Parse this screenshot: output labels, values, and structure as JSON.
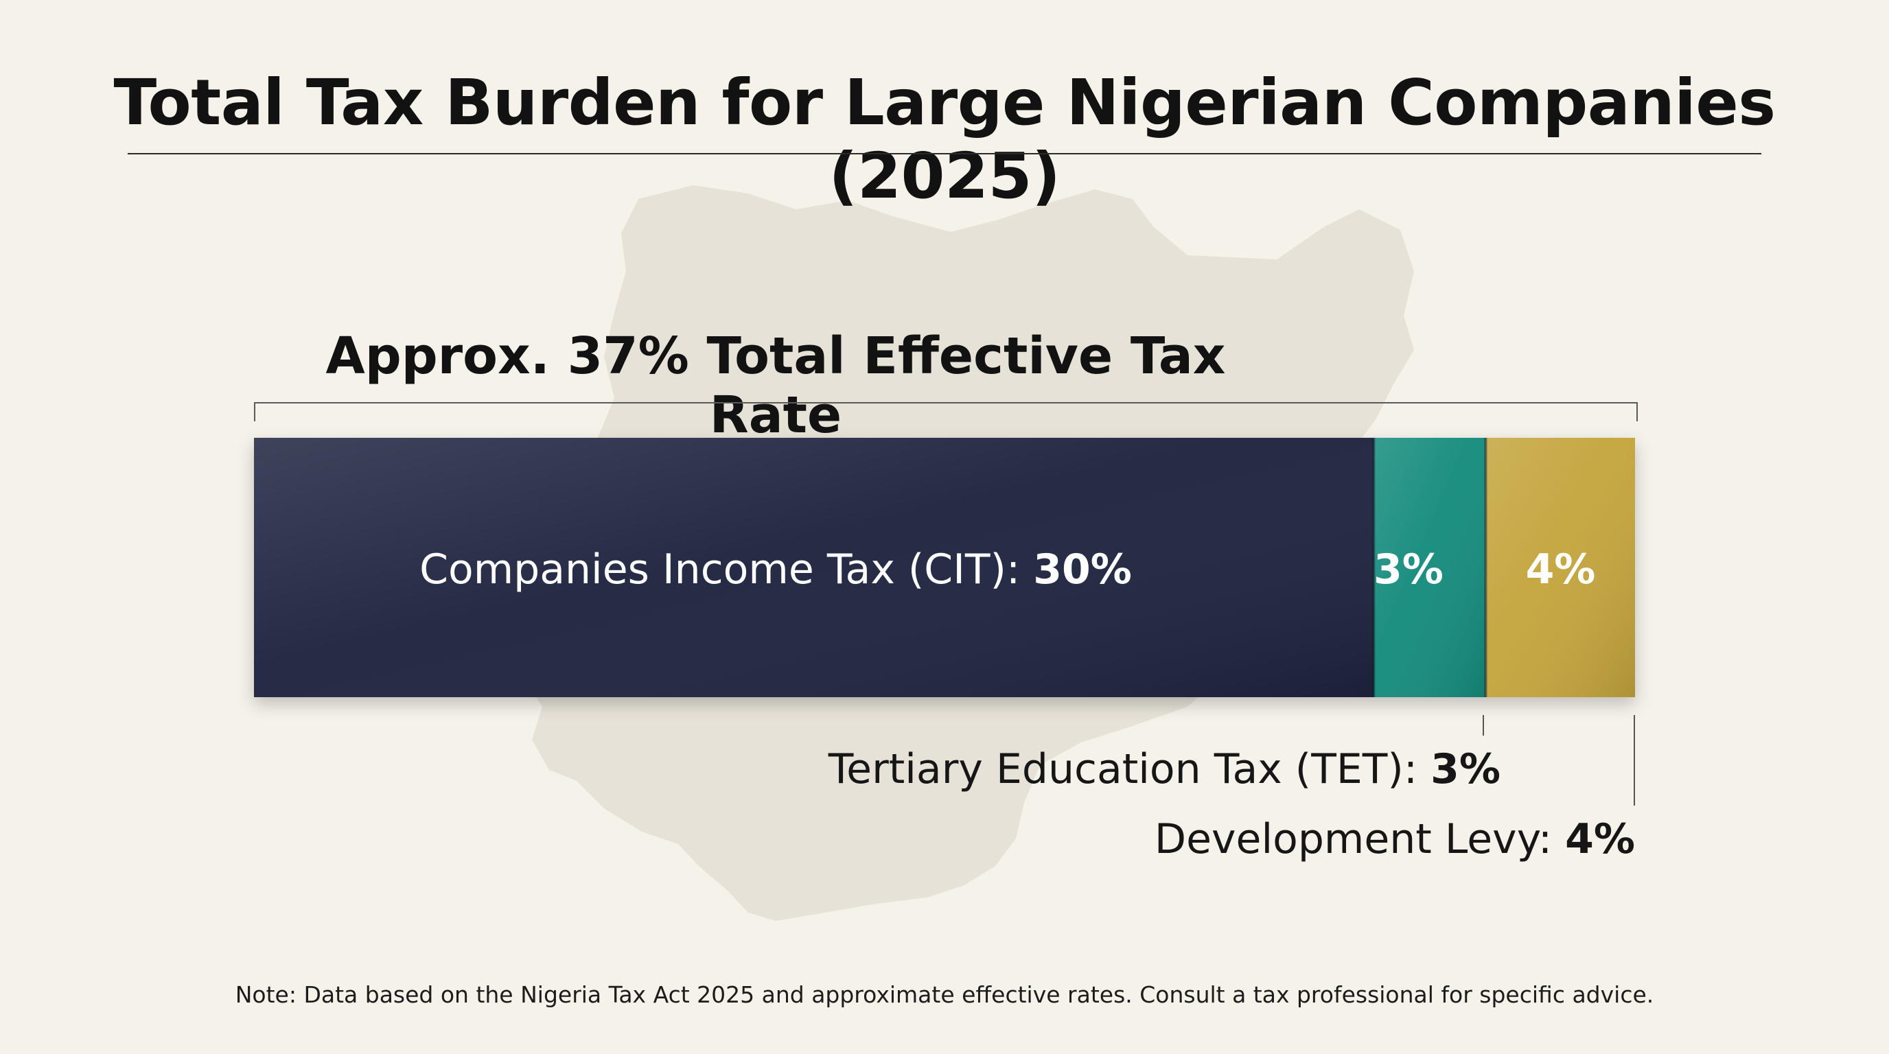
{
  "chart_data": {
    "type": "bar",
    "orientation": "horizontal",
    "stacked": true,
    "title": "Total Tax Burden for Large Nigerian Companies (2025)",
    "subtitle": "Approx. 37% Total Effective Tax Rate",
    "total_value": 37,
    "unit": "%",
    "series": [
      {
        "name": "Companies Income Tax (CIT)",
        "value": 30,
        "value_label": "30%",
        "color": "#1f2540"
      },
      {
        "name": "Tertiary Education Tax (TET)",
        "value": 3,
        "value_label": "3%",
        "color": "#168c7e"
      },
      {
        "name": "Development Levy",
        "value": 4,
        "value_label": "4%",
        "color": "#c4a53e"
      }
    ],
    "note": "Note: Data based on the Nigeria Tax Act 2025 and approximate effective rates. Consult a tax professional for specific advice."
  },
  "labels": {
    "cit_name": "Companies Income Tax (CIT):",
    "cit_value": "30%",
    "tet_inbar": "3%",
    "dev_inbar": "4%",
    "tet_name": "Tertiary Education Tax (TET):",
    "tet_value": "3%",
    "dev_name": "Development Levy:",
    "dev_value": "4%"
  }
}
